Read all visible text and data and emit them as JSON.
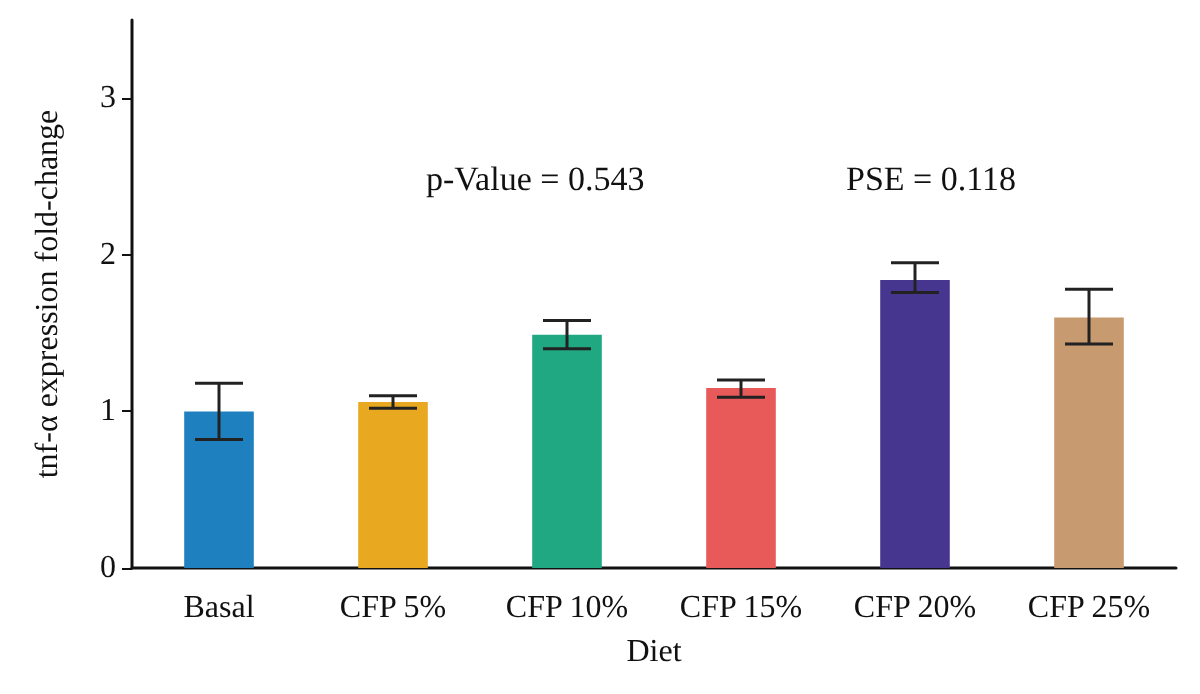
{
  "chart_data": {
    "type": "bar",
    "xlabel": "Diet",
    "ylabel": "tnf-α expression fold-change",
    "categories": [
      "Basal",
      "CFP 5%",
      "CFP 10%",
      "CFP 15%",
      "CFP 20%",
      "CFP 25%"
    ],
    "values": [
      1.0,
      1.06,
      1.49,
      1.15,
      1.84,
      1.6
    ],
    "colors": [
      "#1f80c0",
      "#e8a81f",
      "#1fa882",
      "#e85a5a",
      "#47368f",
      "#c89a70"
    ],
    "errors": [
      [
        0.82,
        1.18
      ],
      [
        1.02,
        1.1
      ],
      [
        1.4,
        1.58
      ],
      [
        1.09,
        1.2
      ],
      [
        1.76,
        1.95
      ],
      [
        1.43,
        1.78
      ]
    ],
    "ylim": [
      0,
      3.5
    ],
    "yticks": [
      0,
      1,
      2,
      3
    ],
    "grid": false,
    "annotations": [
      "p-Value = 0.543",
      "PSE = 0.118"
    ]
  }
}
